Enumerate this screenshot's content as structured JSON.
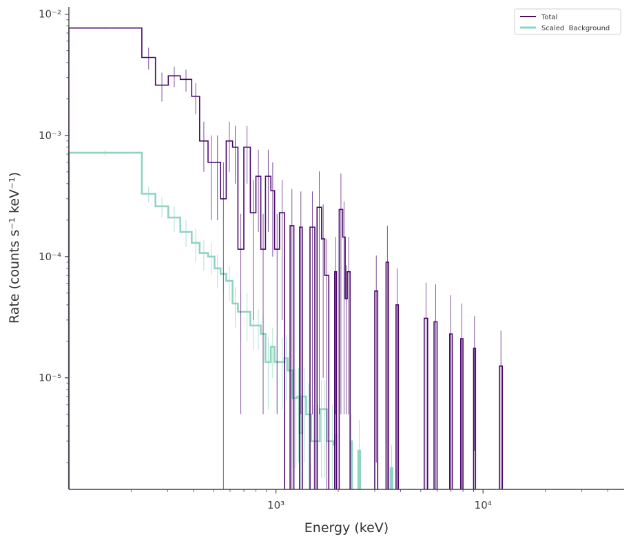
{
  "chart_data": {
    "type": "line",
    "title": "",
    "xlabel": "Energy (keV)",
    "ylabel": "Rate (counts s⁻¹ keV⁻¹)",
    "xscale": "log",
    "yscale": "log",
    "xlim": [
      100,
      48000
    ],
    "ylim": [
      1.2e-06,
      0.0115
    ],
    "grid": false,
    "legend_position": "top-right",
    "x_ticks": [
      {
        "value": 1000,
        "label": "10³"
      },
      {
        "value": 10000,
        "label": "10⁴"
      }
    ],
    "y_ticks": [
      {
        "value": 0.01,
        "label": "10⁻²"
      },
      {
        "value": 0.001,
        "label": "10⁻³"
      },
      {
        "value": 0.0001,
        "label": "10⁻⁴"
      },
      {
        "value": 1e-05,
        "label": "10⁻⁵"
      }
    ],
    "series": [
      {
        "name": "Total",
        "color": "#4b0a6e",
        "style": "step",
        "bins": [
          [
            100,
            225,
            0.0077,
            0.0001
          ],
          [
            225,
            262,
            0.0044,
            0.0009
          ],
          [
            262,
            302,
            0.0026,
            0.0007
          ],
          [
            302,
            345,
            0.0031,
            0.0006
          ],
          [
            345,
            392,
            0.0029,
            0.0006
          ],
          [
            392,
            428,
            0.0021,
            0.0006
          ],
          [
            428,
            470,
            0.0009,
            0.0004
          ],
          [
            470,
            505,
            0.0006,
            0.0004
          ],
          [
            505,
            540,
            0.0006,
            0.0004
          ],
          [
            540,
            575,
            0.0003,
            0.0003
          ],
          [
            575,
            617,
            0.0009,
            0.0004
          ],
          [
            617,
            655,
            0.0008,
            0.0004
          ],
          [
            655,
            700,
            0.000115,
            0.00011
          ],
          [
            700,
            752,
            0.0008,
            0.0004
          ],
          [
            752,
            800,
            0.00023,
            0.0002
          ],
          [
            800,
            845,
            0.00046,
            0.0003
          ],
          [
            845,
            890,
            0.000115,
            0.00011
          ],
          [
            890,
            945,
            0.00046,
            0.0003
          ],
          [
            945,
            985,
            0.00035,
            0.00025
          ],
          [
            985,
            1040,
            0.000115,
            0.00011
          ],
          [
            1040,
            1100,
            0.00023,
            0.0002
          ],
          [
            1100,
            1170,
            null,
            null
          ],
          [
            1170,
            1220,
            0.00018,
            0.00018
          ],
          [
            1220,
            1300,
            null,
            null
          ],
          [
            1300,
            1340,
            0.000175,
            0.00017
          ],
          [
            1340,
            1460,
            null,
            null
          ],
          [
            1460,
            1540,
            0.000175,
            0.00017
          ],
          [
            1540,
            1580,
            null,
            null
          ],
          [
            1580,
            1660,
            0.000255,
            0.00025
          ],
          [
            1660,
            1720,
            0.00014,
            0.00013
          ],
          [
            1720,
            1800,
            7e-05,
            7e-05
          ],
          [
            1800,
            1920,
            null,
            null
          ],
          [
            1920,
            1960,
            7.5e-05,
            7e-05
          ],
          [
            1960,
            2020,
            null,
            null
          ],
          [
            2020,
            2100,
            0.000245,
            0.00024
          ],
          [
            2100,
            2160,
            0.000145,
            0.00014
          ],
          [
            2160,
            2210,
            4.5e-05,
            4e-05
          ],
          [
            2210,
            2280,
            7.5e-05,
            7e-05
          ],
          [
            2280,
            3000,
            null,
            null
          ],
          [
            3000,
            3100,
            5.2e-05,
            5e-05
          ],
          [
            3100,
            3400,
            null,
            null
          ],
          [
            3400,
            3500,
            9e-05,
            9e-05
          ],
          [
            3500,
            3800,
            null,
            null
          ],
          [
            3800,
            3900,
            4e-05,
            4e-05
          ],
          [
            3900,
            5200,
            null,
            null
          ],
          [
            5200,
            5400,
            3.1e-05,
            3e-05
          ],
          [
            5400,
            5800,
            null,
            null
          ],
          [
            5800,
            6000,
            2.9e-05,
            3e-05
          ],
          [
            6000,
            6900,
            null,
            null
          ],
          [
            6900,
            7100,
            2.3e-05,
            2.5e-05
          ],
          [
            7100,
            7800,
            null,
            null
          ],
          [
            7800,
            8000,
            2.1e-05,
            2e-05
          ],
          [
            8000,
            9000,
            null,
            null
          ],
          [
            9000,
            9200,
            1.75e-05,
            1.5e-05
          ],
          [
            9200,
            12000,
            null,
            null
          ],
          [
            12000,
            12400,
            1.25e-05,
            1.2e-05
          ]
        ]
      },
      {
        "name": "Scaled  Background",
        "color": "#8fd4c2",
        "style": "step",
        "bins": [
          [
            100,
            225,
            0.00072,
            4e-05
          ],
          [
            225,
            262,
            0.00033,
            5e-05
          ],
          [
            262,
            302,
            0.00026,
            5e-05
          ],
          [
            302,
            345,
            0.00021,
            5e-05
          ],
          [
            345,
            392,
            0.00016,
            4e-05
          ],
          [
            392,
            428,
            0.00013,
            4e-05
          ],
          [
            428,
            470,
            0.000107,
            3e-05
          ],
          [
            470,
            505,
            0.0001,
            3e-05
          ],
          [
            505,
            540,
            8e-05,
            2.5e-05
          ],
          [
            540,
            575,
            7.2e-05,
            2e-05
          ],
          [
            575,
            617,
            6.3e-05,
            2e-05
          ],
          [
            617,
            655,
            4.1e-05,
            1.5e-05
          ],
          [
            655,
            700,
            3.5e-05,
            1.5e-05
          ],
          [
            700,
            752,
            3.5e-05,
            1.5e-05
          ],
          [
            752,
            800,
            2.7e-05,
            1e-05
          ],
          [
            800,
            845,
            2.7e-05,
            1e-05
          ],
          [
            845,
            890,
            2.3e-05,
            1e-05
          ],
          [
            890,
            945,
            1.35e-05,
            8e-06
          ],
          [
            945,
            985,
            1.8e-05,
            8e-06
          ],
          [
            985,
            1040,
            1.35e-05,
            8e-06
          ],
          [
            1040,
            1100,
            1.35e-05,
            8e-06
          ],
          [
            1100,
            1140,
            1.45e-05,
            8e-06
          ],
          [
            1140,
            1200,
            1.15e-05,
            7e-06
          ],
          [
            1200,
            1230,
            6.8e-06,
            5e-06
          ],
          [
            1230,
            1270,
            6.8e-06,
            5e-06
          ],
          [
            1270,
            1300,
            7e-06,
            5e-06
          ],
          [
            1300,
            1340,
            3.5e-06,
            3e-06
          ],
          [
            1340,
            1400,
            7e-06,
            5e-06
          ],
          [
            1400,
            1480,
            5e-06,
            4e-06
          ],
          [
            1480,
            1560,
            3e-06,
            3e-06
          ],
          [
            1560,
            1630,
            3e-06,
            3e-06
          ],
          [
            1630,
            1690,
            5.5e-06,
            4e-06
          ],
          [
            1690,
            1760,
            5.5e-06,
            4e-06
          ],
          [
            1760,
            1840,
            3e-06,
            3e-06
          ],
          [
            1840,
            1900,
            3e-06,
            3e-06
          ],
          [
            1900,
            1930,
            2.8e-06,
            2e-06
          ],
          [
            1930,
            1960,
            3.4e-06,
            2e-06
          ],
          [
            1960,
            2290,
            null,
            null
          ],
          [
            2290,
            2330,
            3e-06,
            2e-06
          ],
          [
            2330,
            2500,
            null,
            null
          ],
          [
            2500,
            2550,
            2.5e-06,
            2e-06
          ],
          [
            2550,
            3580,
            null,
            null
          ],
          [
            3580,
            3650,
            1.8e-06,
            1e-06
          ]
        ]
      }
    ]
  }
}
